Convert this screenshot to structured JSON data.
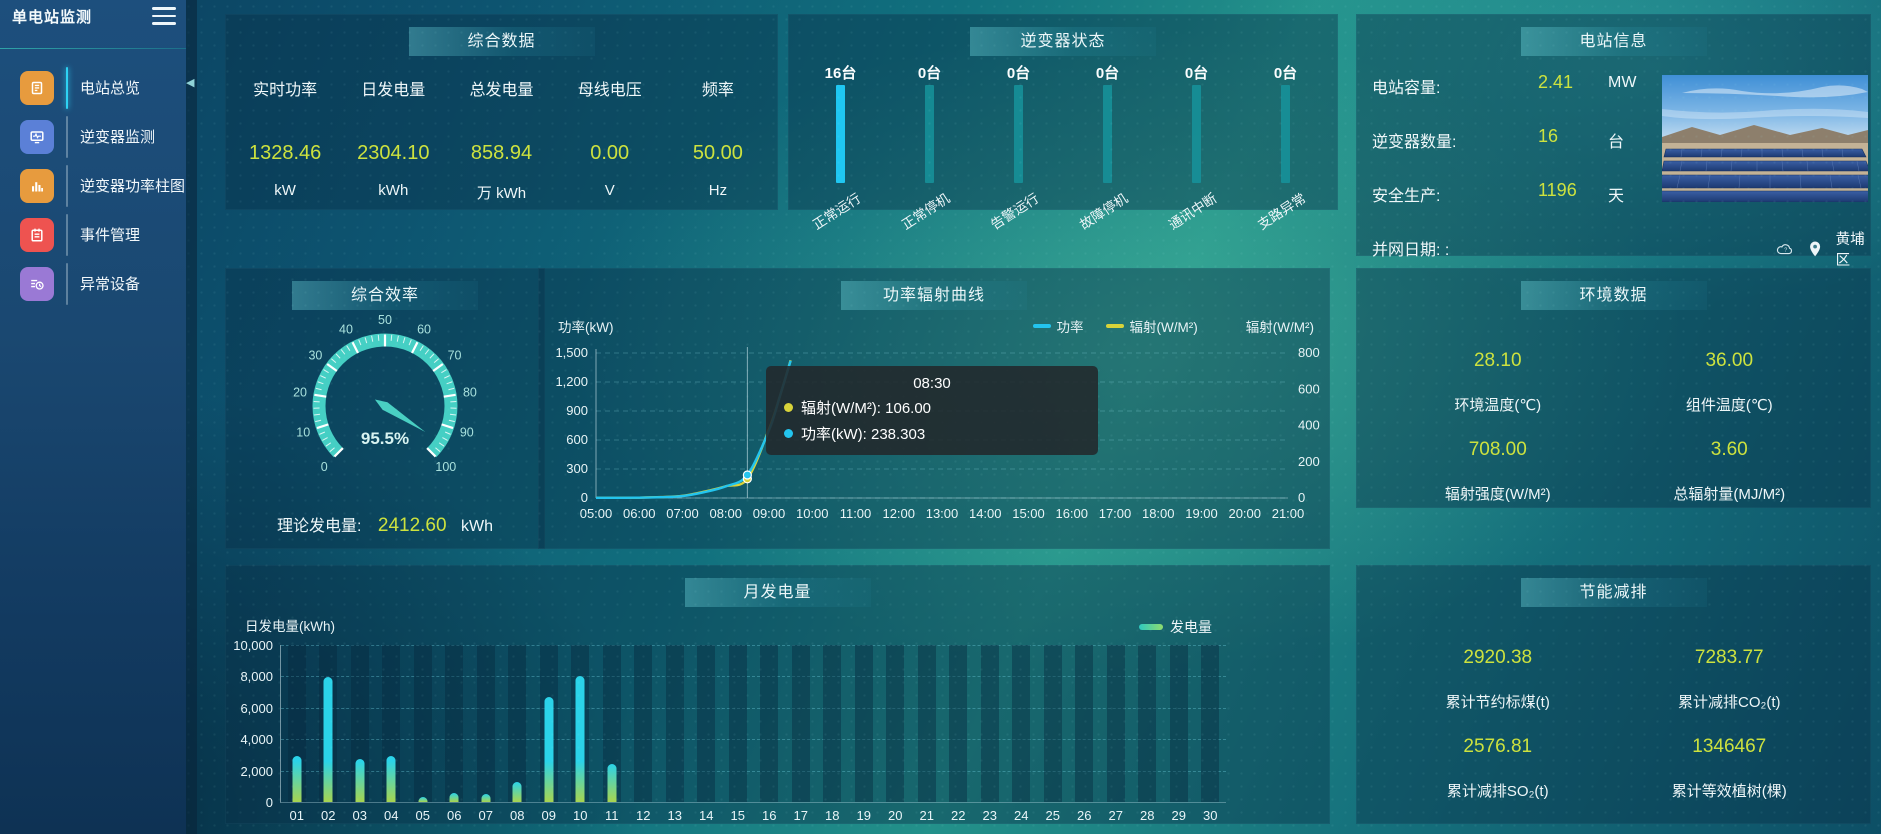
{
  "sidebar": {
    "title": "单电站监测",
    "items": [
      {
        "label": "电站总览",
        "icon": "overview-doc-icon",
        "color": "#e79b3e",
        "active": true
      },
      {
        "label": "逆变器监测",
        "icon": "inverter-monitor-icon",
        "color": "#5b80d7",
        "active": false
      },
      {
        "label": "逆变器功率柱图",
        "icon": "power-bars-icon",
        "color": "#e79b3e",
        "active": false
      },
      {
        "label": "事件管理",
        "icon": "event-note-icon",
        "color": "#ee5350",
        "active": false
      },
      {
        "label": "异常设备",
        "icon": "abnormal-device-icon",
        "color": "#9a79d5",
        "active": false
      }
    ]
  },
  "summary": {
    "title": "综合数据",
    "metrics": [
      {
        "label": "实时功率",
        "value": "1328.46",
        "unit": "kW"
      },
      {
        "label": "日发电量",
        "value": "2304.10",
        "unit": "kWh"
      },
      {
        "label": "总发电量",
        "value": "858.94",
        "unit": "万 kWh"
      },
      {
        "label": "母线电压",
        "value": "0.00",
        "unit": "V"
      },
      {
        "label": "频率",
        "value": "50.00",
        "unit": "Hz"
      }
    ]
  },
  "inverter_status": {
    "title": "逆变器状态",
    "bars": [
      {
        "count": "16台",
        "label": "正常运行",
        "highlight": true
      },
      {
        "count": "0台",
        "label": "正常停机",
        "highlight": false
      },
      {
        "count": "0台",
        "label": "告警运行",
        "highlight": false
      },
      {
        "count": "0台",
        "label": "故障停机",
        "highlight": false
      },
      {
        "count": "0台",
        "label": "通讯中断",
        "highlight": false
      },
      {
        "count": "0台",
        "label": "支路异常",
        "highlight": false
      }
    ]
  },
  "station_info": {
    "title": "电站信息",
    "rows": [
      {
        "label": "电站容量:",
        "value": "2.41",
        "unit": "MW"
      },
      {
        "label": "逆变器数量:",
        "value": "16",
        "unit": "台"
      },
      {
        "label": "安全生产:",
        "value": "1196",
        "unit": "天"
      },
      {
        "label": "并网日期: :",
        "value": "",
        "unit": ""
      }
    ],
    "district": "黄埔区"
  },
  "efficiency": {
    "title": "综合效率",
    "value_label": "95.5%",
    "theory_label": "理论发电量:",
    "theory_value": "2412.60",
    "theory_unit": "kWh"
  },
  "power_curve": {
    "title": "功率辐射曲线",
    "y_left_name": "功率(kW)",
    "y_right_name": "辐射(W/M²)",
    "legend": [
      "功率",
      "辐射(W/M²)"
    ],
    "tooltip": {
      "time": "08:30",
      "radiation_line": "辐射(W/M²): 106.00",
      "power_line": "功率(kW): 238.303"
    }
  },
  "environment": {
    "title": "环境数据",
    "cells": [
      {
        "value": "28.10",
        "label": "环境温度(℃)"
      },
      {
        "value": "36.00",
        "label": "组件温度(℃)"
      },
      {
        "value": "708.00",
        "label": "辐射强度(W/M²)"
      },
      {
        "value": "3.60",
        "label": "总辐射量(MJ/M²)"
      }
    ]
  },
  "monthly": {
    "title": "月发电量",
    "y_name": "日发电量(kWh)",
    "legend": "发电量"
  },
  "saving": {
    "title": "节能减排",
    "cells": [
      {
        "value": "2920.38",
        "label": "累计节约标煤(t)"
      },
      {
        "value": "7283.77",
        "label": "累计减排CO₂(t)"
      },
      {
        "value": "2576.81",
        "label": "累计减排SO₂(t)"
      },
      {
        "value": "1346467",
        "label": "累计等效植树(棵)"
      }
    ]
  },
  "colors": {
    "value_accent": "#cde23e",
    "power_line": "#23c4ee",
    "radiation_line": "#d8d33a",
    "active_bar": "#1fc7f2",
    "idle_bar": "#16939b",
    "bar_top": "#2bd3e9",
    "bar_bottom": "#a8d44f",
    "gauge_ring": "#45cfc4"
  },
  "chart_data": [
    {
      "type": "gauge",
      "title": "综合效率",
      "value": 95.5,
      "min": 0,
      "max": 100,
      "tick_step": 10,
      "center_label": "95.5%"
    },
    {
      "type": "line",
      "title": "功率辐射曲线",
      "x_ticks": [
        "05:00",
        "06:00",
        "07:00",
        "08:00",
        "09:00",
        "10:00",
        "11:00",
        "12:00",
        "13:00",
        "14:00",
        "15:00",
        "16:00",
        "17:00",
        "18:00",
        "19:00",
        "20:00",
        "21:00"
      ],
      "sample_minutes": [
        0,
        30,
        60,
        90,
        120,
        150,
        180,
        210,
        240,
        255,
        270
      ],
      "series": [
        {
          "name": "功率",
          "axis": "left",
          "values": [
            2,
            2,
            3,
            8,
            20,
            60,
            120,
            238.303,
            700,
            1050,
            1420
          ]
        },
        {
          "name": "辐射(W/M²)",
          "axis": "right",
          "values": [
            1,
            1,
            2,
            5,
            12,
            35,
            65,
            106,
            380,
            560,
            760
          ]
        }
      ],
      "y_left": {
        "name": "功率(kW)",
        "min": 0,
        "max": 1500,
        "ticks": [
          "1,500",
          "1,200",
          "900",
          "600",
          "300",
          "0"
        ]
      },
      "y_right": {
        "name": "辐射(W/M²)",
        "min": 0,
        "max": 800,
        "ticks": [
          "800",
          "600",
          "400",
          "200",
          "0"
        ]
      },
      "crosshair_minute": 210,
      "tooltip": {
        "time": "08:30",
        "radiation": 106.0,
        "power": 238.303
      },
      "legend_position": "top-right",
      "grid": "dashed"
    },
    {
      "type": "bar",
      "title": "月发电量",
      "categories": [
        "01",
        "02",
        "03",
        "04",
        "05",
        "06",
        "07",
        "08",
        "09",
        "10",
        "11",
        "12",
        "13",
        "14",
        "15",
        "16",
        "17",
        "18",
        "19",
        "20",
        "21",
        "22",
        "23",
        "24",
        "25",
        "26",
        "27",
        "28",
        "29",
        "30"
      ],
      "values": [
        2900,
        7950,
        2750,
        2900,
        350,
        600,
        480,
        1300,
        6700,
        8000,
        2400,
        0,
        0,
        0,
        0,
        0,
        0,
        0,
        0,
        0,
        0,
        0,
        0,
        0,
        0,
        0,
        0,
        0,
        0,
        0
      ],
      "ylabel": "日发电量(kWh)",
      "ylim": [
        0,
        10000
      ],
      "y_ticks": [
        "10,000",
        "8,000",
        "6,000",
        "4,000",
        "2,000",
        "0"
      ],
      "legend": "发电量"
    }
  ]
}
